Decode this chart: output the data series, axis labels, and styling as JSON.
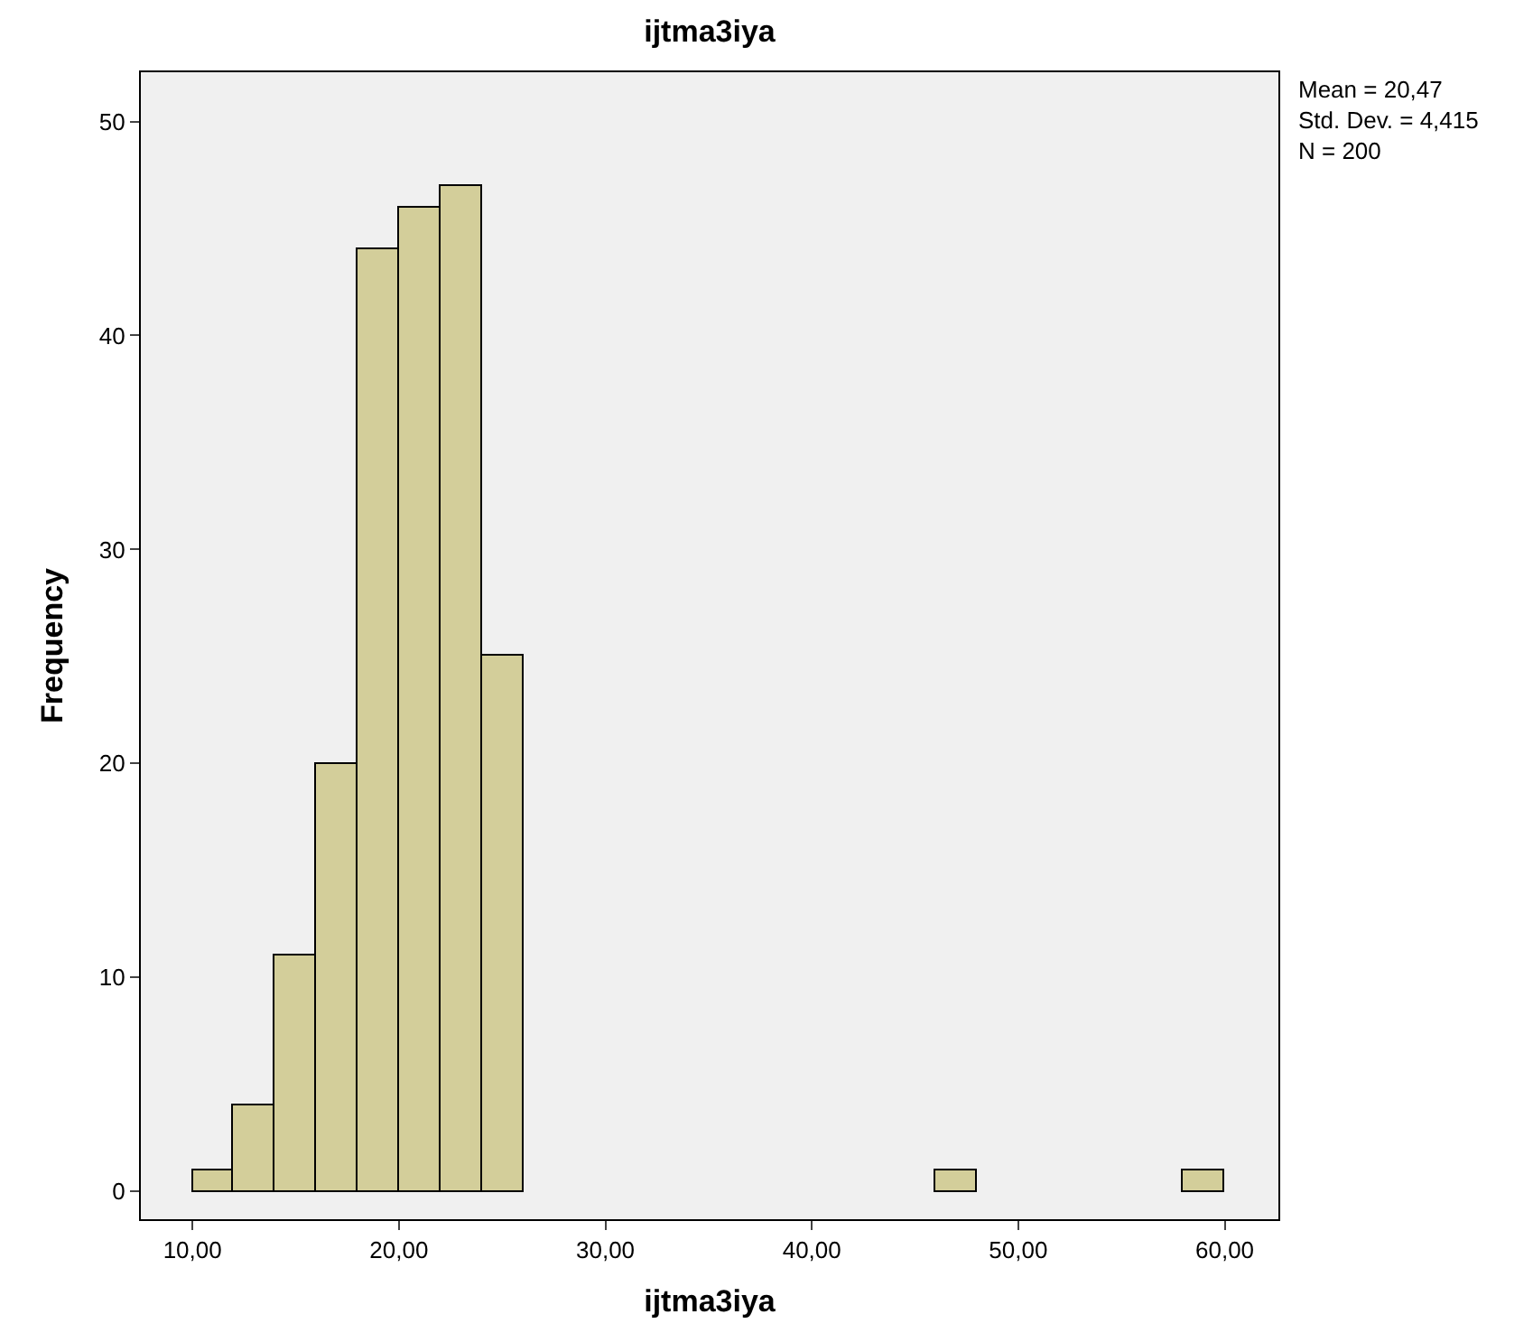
{
  "chart_data": {
    "type": "histogram",
    "title": "ijtma3iya",
    "xlabel": "ijtma3iya",
    "ylabel": "Frequency",
    "bins": [
      10,
      12,
      14,
      16,
      18,
      20,
      22,
      24,
      26,
      28,
      30,
      32,
      34,
      36,
      38,
      40,
      42,
      44,
      46,
      48,
      50,
      52,
      54,
      56,
      58,
      60
    ],
    "values": [
      1,
      4,
      11,
      20,
      44,
      46,
      47,
      25,
      0,
      0,
      0,
      0,
      0,
      0,
      0,
      0,
      0,
      0,
      1,
      0,
      0,
      0,
      0,
      0,
      1
    ],
    "color": "#d3ce9a",
    "xlim": [
      7.5,
      62.6
    ],
    "xticks": [
      {
        "value": 10,
        "label": "10,00"
      },
      {
        "value": 20,
        "label": "20,00"
      },
      {
        "value": 30,
        "label": "30,00"
      },
      {
        "value": 40,
        "label": "40,00"
      },
      {
        "value": 50,
        "label": "50,00"
      },
      {
        "value": 60,
        "label": "60,00"
      }
    ],
    "ylim": [
      -1.3,
      52.3
    ],
    "yticks": [
      0,
      10,
      20,
      30,
      40,
      50
    ],
    "grid": false,
    "annotations": [
      "Mean = 20,47",
      "Std. Dev. = 4,415",
      "N = 200"
    ]
  }
}
